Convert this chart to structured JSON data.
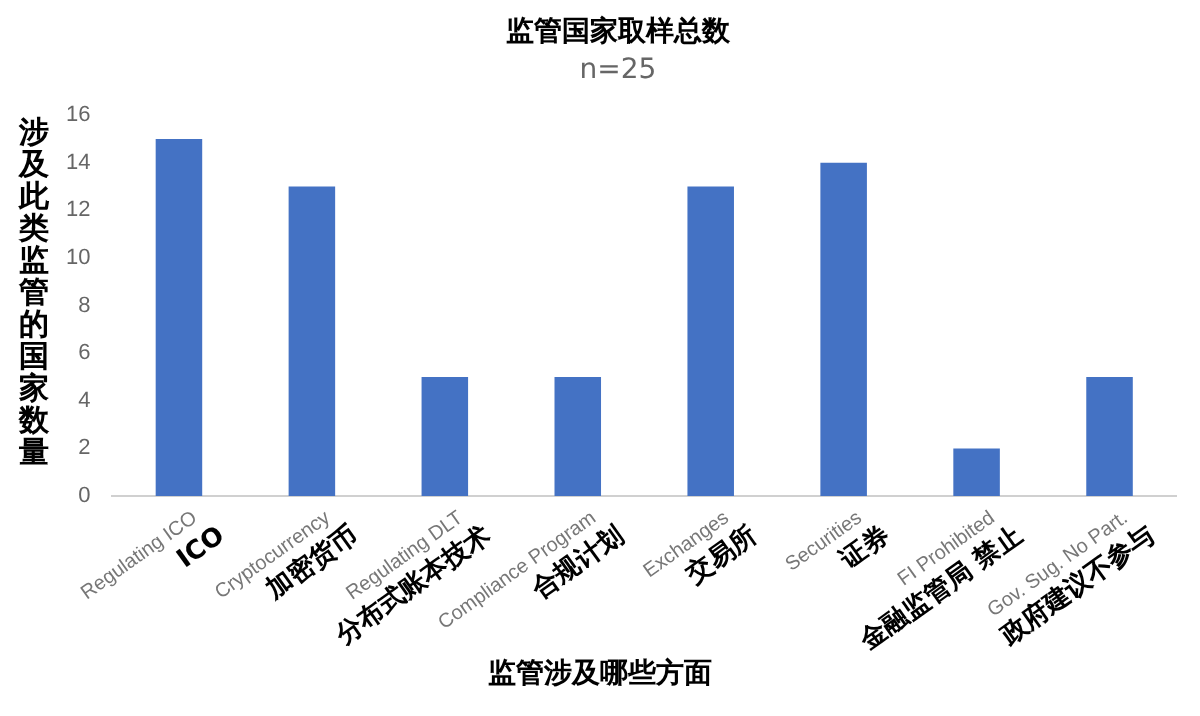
{
  "chart_data": {
    "type": "bar",
    "title": "监管国家取样总数",
    "subtitle": "n=25",
    "xlabel": "监管涉及哪些方面",
    "ylabel": "涉及此类监管的国家数量",
    "categories": [
      "Regulating ICO\nICO",
      "Cryptocurrency\n加密货币",
      "Regulating DLT\n分布式账本技术",
      "Compliance Program\n合规计划",
      "Exchanges\n交易所",
      "Securities\n证券",
      "FI Prohibited\n金融监管局 禁止",
      "Gov. Sug. No Part.\n政府建议不参与"
    ],
    "values": [
      15,
      13,
      5,
      5,
      13,
      14,
      2,
      5
    ],
    "color": "#4472c4",
    "ylim": [
      0,
      16
    ],
    "yticks": [
      0,
      2,
      4,
      6,
      8,
      10,
      12,
      14,
      16
    ],
    "grid": false,
    "legend": false
  }
}
